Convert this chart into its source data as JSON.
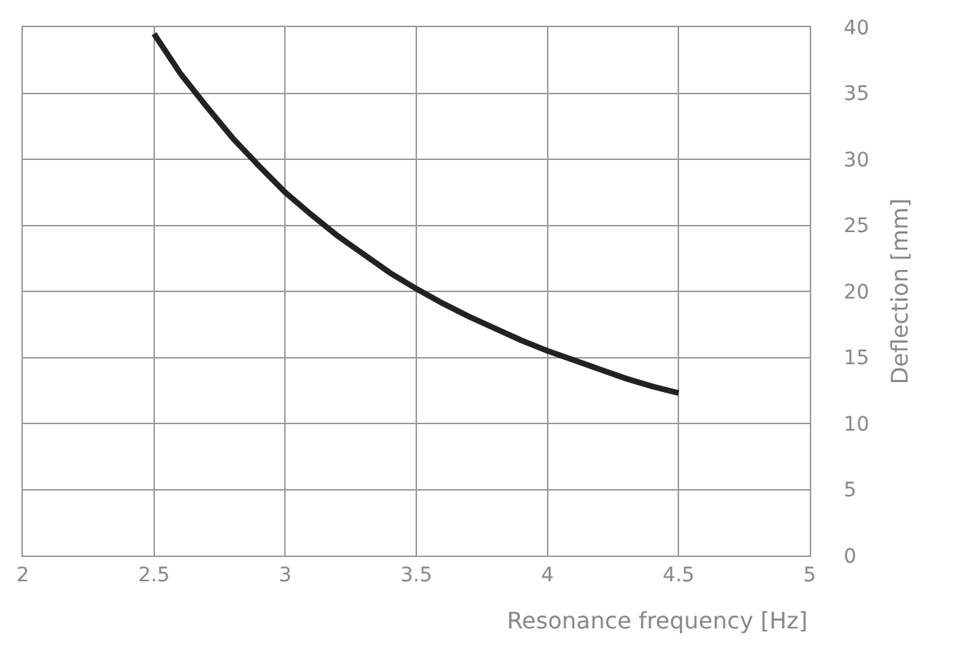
{
  "chart_data": {
    "type": "line",
    "xlabel": "Resonance frequency [Hz]",
    "ylabel": "Deflection [mm]",
    "x": [
      2.5,
      2.6,
      2.7,
      2.8,
      2.9,
      3.0,
      3.1,
      3.2,
      3.3,
      3.4,
      3.5,
      3.6,
      3.7,
      3.8,
      3.9,
      4.0,
      4.1,
      4.2,
      4.3,
      4.4,
      4.5
    ],
    "series": [
      {
        "color": "#222222",
        "values": [
          39.5,
          36.5,
          34,
          31.6,
          29.5,
          27.5,
          25.8,
          24.2,
          22.8,
          21.4,
          20.2,
          19.1,
          18.1,
          17.2,
          16.3,
          15.5,
          14.8,
          14.1,
          13.4,
          12.8,
          12.3
        ]
      }
    ],
    "xlim": [
      2,
      5
    ],
    "xticks": [
      2,
      2.5,
      3,
      3.5,
      4,
      4.5,
      5
    ],
    "ylim": [
      0,
      40
    ],
    "yticks": [
      0,
      5,
      10,
      15,
      20,
      25,
      30,
      35,
      40
    ],
    "grid": true,
    "legend": false,
    "marker": "none",
    "line_style": "solid"
  }
}
